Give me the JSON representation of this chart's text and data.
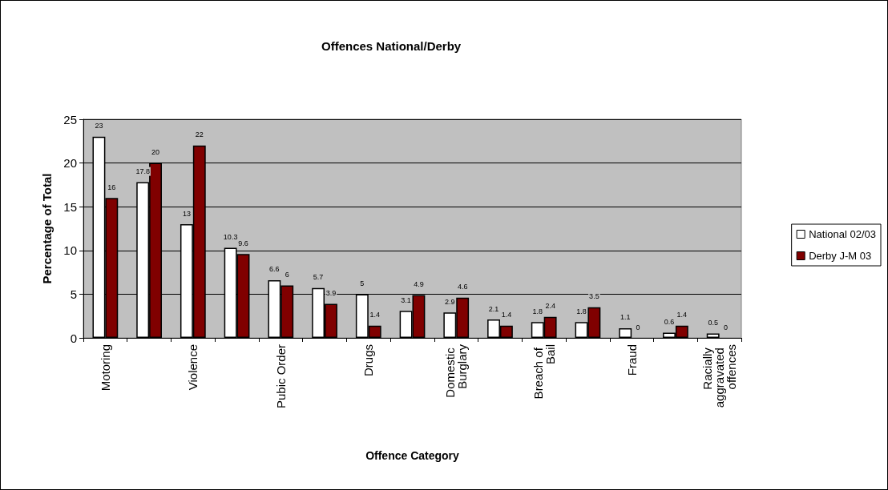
{
  "chart_data": {
    "type": "bar",
    "title": "Offences National/Derby",
    "xlabel": "Offence Category",
    "ylabel": "Percentage of Total",
    "categories": [
      "Motoring",
      null,
      "Violence",
      null,
      "Pubic Order",
      null,
      "Drugs",
      null,
      "Domestic Burglary",
      null,
      "Breach of Bail",
      null,
      "Fraud",
      null,
      "Racially aggravated offences"
    ],
    "series": [
      {
        "name": "National 02/03",
        "color": "#ffffff",
        "values": [
          23,
          17.8,
          13,
          10.3,
          6.6,
          5.7,
          5,
          3.1,
          2.9,
          2.1,
          1.8,
          1.8,
          1.1,
          0.6,
          0.5
        ]
      },
      {
        "name": "Derby J-M 03",
        "color": "#800000",
        "values": [
          16,
          20,
          22,
          9.6,
          6,
          3.9,
          1.4,
          4.9,
          4.6,
          1.4,
          2.4,
          3.5,
          0,
          1.4,
          0
        ]
      }
    ],
    "ylim": [
      0,
      25
    ],
    "yticks": [
      0,
      5,
      10,
      15,
      20,
      25
    ],
    "grid": "y",
    "legend": "right",
    "data_labels": true
  }
}
